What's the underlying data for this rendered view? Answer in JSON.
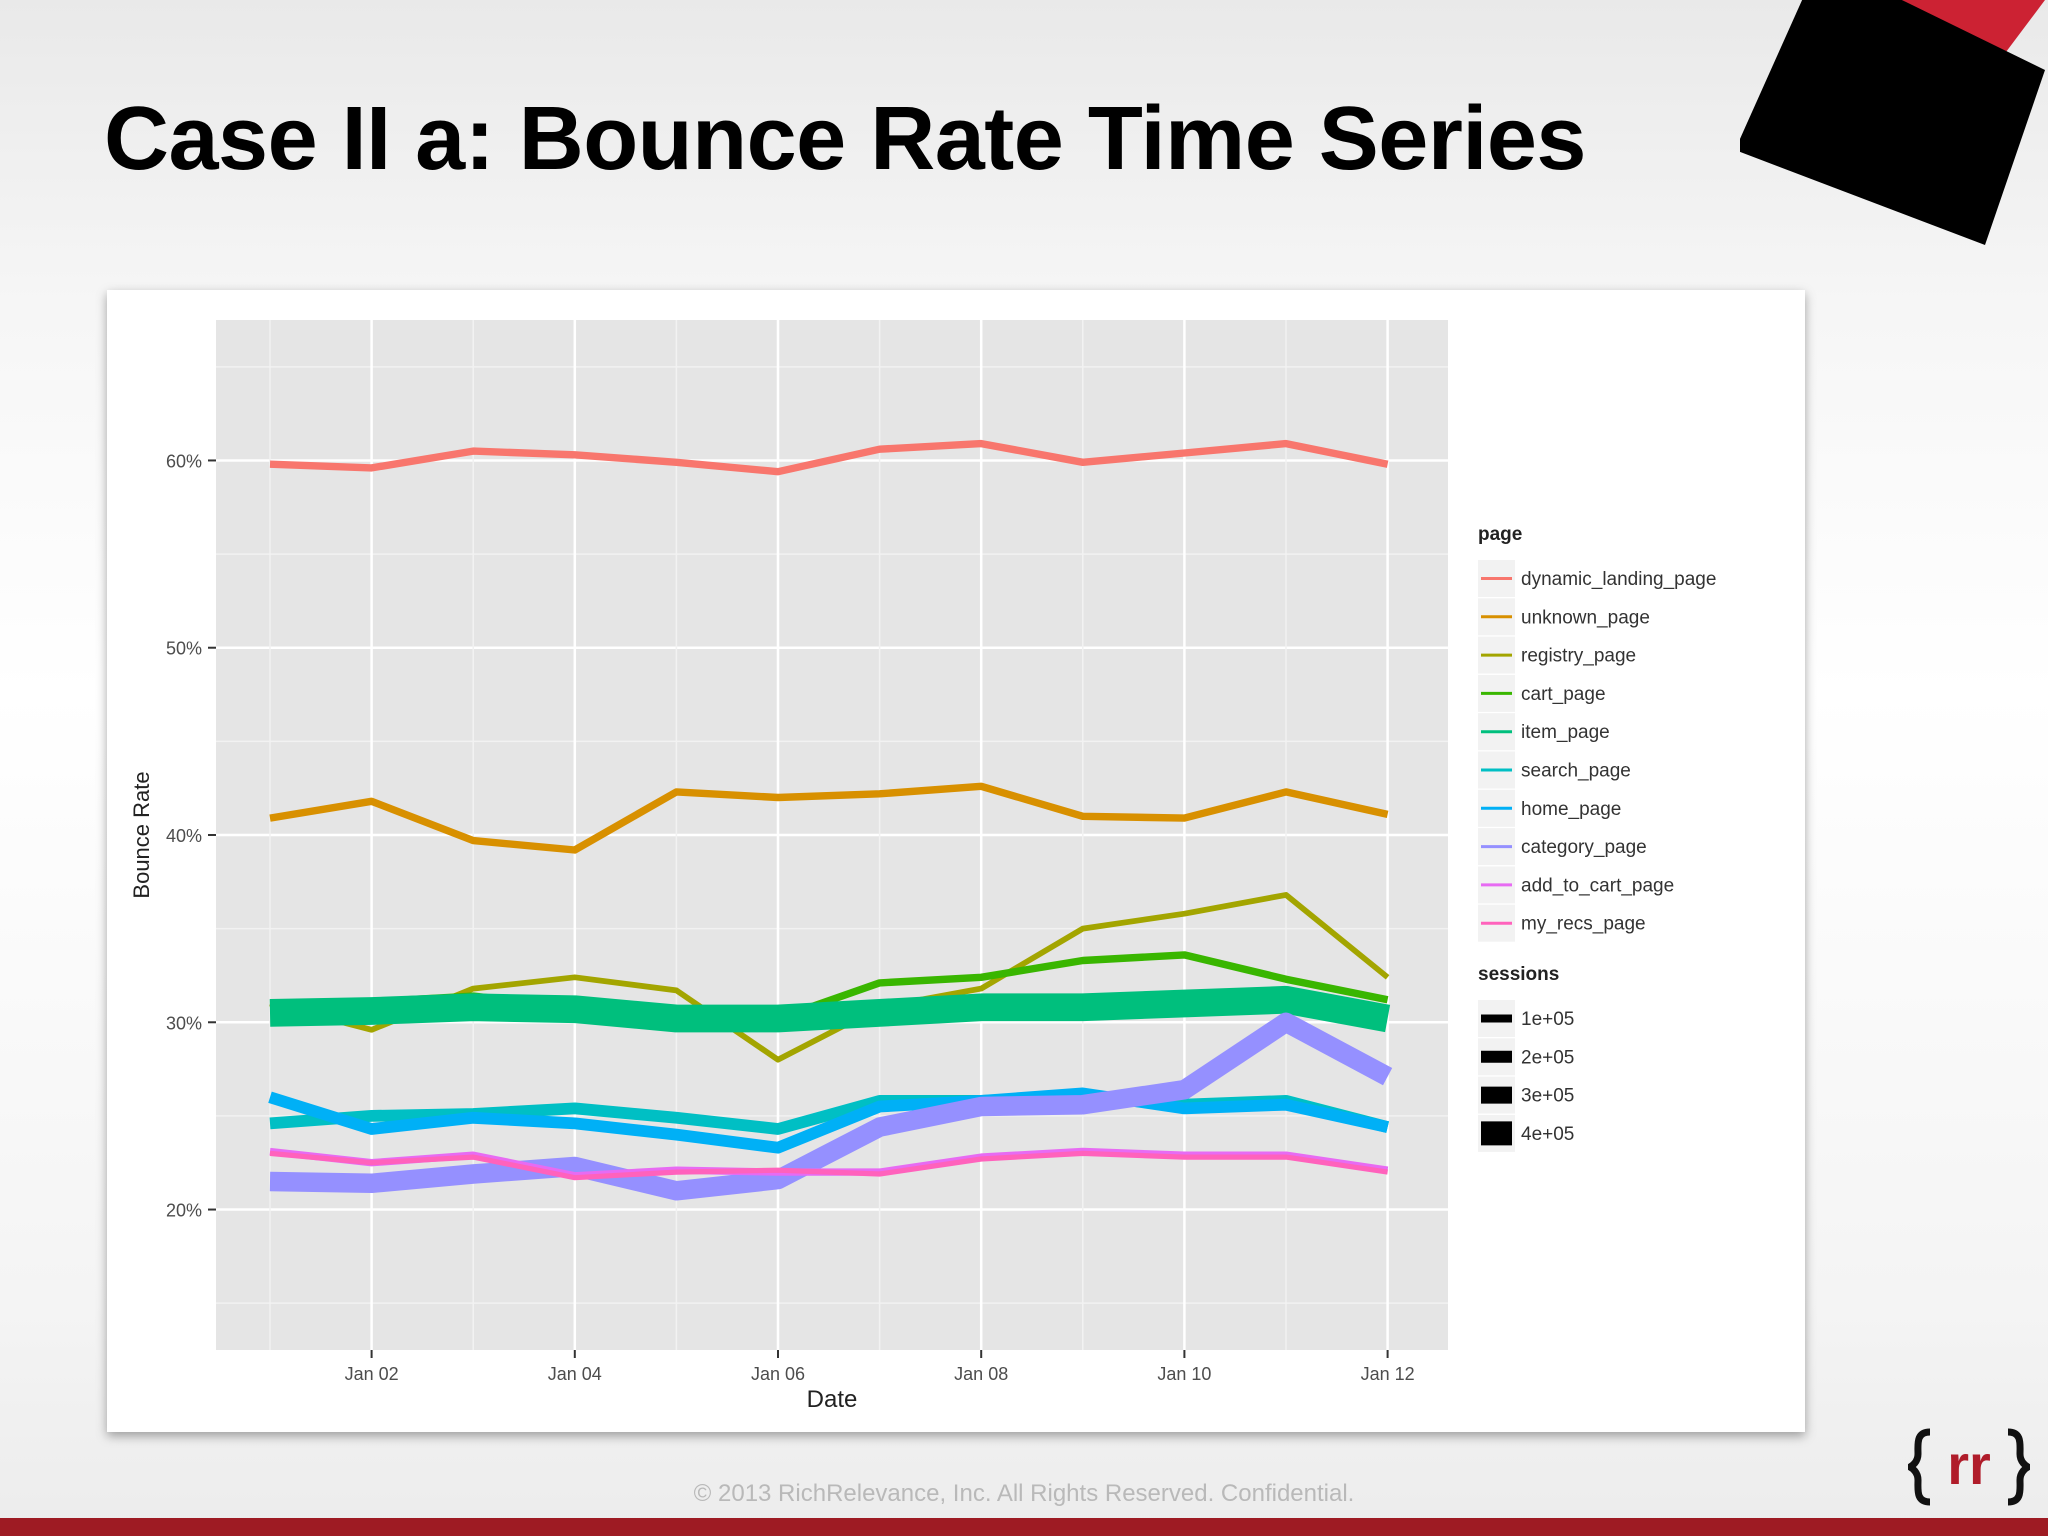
{
  "slide": {
    "title": "Case II a:  Bounce Rate Time Series",
    "footer": "© 2013 RichRelevance, Inc. All Rights Reserved. Confidential.",
    "brand_color": "#9e1b23",
    "logo_text": "rr"
  },
  "chart_data": {
    "type": "line",
    "xlabel": "Date",
    "ylabel": "Bounce Rate",
    "x": [
      "Jan 01",
      "Jan 02",
      "Jan 03",
      "Jan 04",
      "Jan 05",
      "Jan 06",
      "Jan 07",
      "Jan 08",
      "Jan 09",
      "Jan 10",
      "Jan 11",
      "Jan 12"
    ],
    "x_tick_labels": [
      "Jan 02",
      "Jan 04",
      "Jan 06",
      "Jan 08",
      "Jan 10",
      "Jan 12"
    ],
    "y_ticks": [
      20,
      30,
      40,
      50,
      60
    ],
    "y_tick_labels": [
      "20%",
      "30%",
      "40%",
      "50%",
      "60%"
    ],
    "ylim": [
      12.5,
      67.5
    ],
    "grid": true,
    "legend_position": "right",
    "color_legend_title": "page",
    "size_legend_title": "sessions",
    "size_legend_labels": [
      "1e+05",
      "2e+05",
      "3e+05",
      "4e+05"
    ],
    "series": [
      {
        "name": "dynamic_landing_page",
        "color": "#f8766d",
        "sessions": 0.8,
        "values": [
          59.8,
          59.6,
          60.5,
          60.3,
          59.9,
          59.4,
          60.6,
          60.9,
          59.9,
          60.4,
          60.9,
          59.8
        ]
      },
      {
        "name": "unknown_page",
        "color": "#d89000",
        "sessions": 0.8,
        "values": [
          40.9,
          41.8,
          39.7,
          39.2,
          42.3,
          42.0,
          42.2,
          42.6,
          41.0,
          40.9,
          42.3,
          41.1
        ]
      },
      {
        "name": "registry_page",
        "color": "#a3a500",
        "sessions": 0.5,
        "values": [
          31.0,
          29.6,
          31.8,
          32.4,
          31.7,
          28.0,
          30.8,
          31.8,
          35.0,
          35.8,
          36.8,
          32.4
        ]
      },
      {
        "name": "cart_page",
        "color": "#39b600",
        "sessions": 0.8,
        "values": [
          31.0,
          31.1,
          31.4,
          30.8,
          30.2,
          30.2,
          32.1,
          32.4,
          33.3,
          33.6,
          32.3,
          31.2
        ]
      },
      {
        "name": "item_page",
        "color": "#00bf7d",
        "sessions": 4.5,
        "values": [
          30.5,
          30.6,
          30.8,
          30.7,
          30.2,
          30.2,
          30.5,
          30.8,
          30.8,
          31.0,
          31.2,
          30.2
        ]
      },
      {
        "name": "search_page",
        "color": "#00bfc4",
        "sessions": 1.6,
        "values": [
          24.6,
          25.0,
          25.1,
          25.4,
          24.9,
          24.3,
          25.8,
          25.8,
          26.0,
          25.6,
          25.8,
          24.4
        ]
      },
      {
        "name": "home_page",
        "color": "#00b0f6",
        "sessions": 1.6,
        "values": [
          26.0,
          24.3,
          24.9,
          24.6,
          24.0,
          23.3,
          25.5,
          25.8,
          26.2,
          25.4,
          25.6,
          24.4
        ]
      },
      {
        "name": "category_page",
        "color": "#9590ff",
        "sessions": 3.0,
        "values": [
          21.5,
          21.4,
          21.9,
          22.3,
          21.0,
          21.6,
          24.4,
          25.5,
          25.6,
          26.4,
          30.0,
          27.1
        ]
      },
      {
        "name": "add_to_cart_page",
        "color": "#e76bf3",
        "sessions": 0.8,
        "values": [
          23.1,
          22.5,
          22.9,
          21.8,
          22.1,
          22.0,
          22.0,
          22.8,
          23.1,
          22.9,
          22.9,
          22.1
        ]
      },
      {
        "name": "my_recs_page",
        "color": "#ff62bc",
        "sessions": 0.4,
        "values": [
          23.0,
          22.5,
          22.8,
          21.7,
          22.0,
          22.1,
          21.9,
          22.7,
          23.0,
          22.8,
          22.8,
          22.0
        ]
      }
    ]
  }
}
